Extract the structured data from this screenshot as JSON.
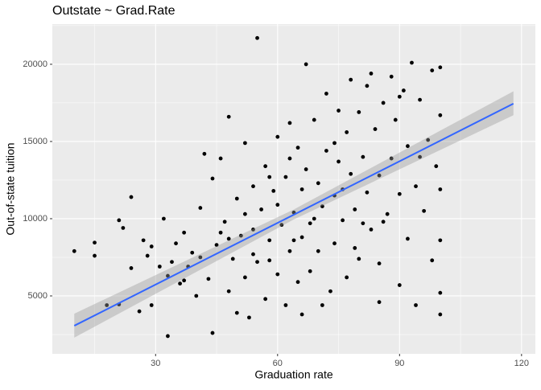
{
  "chart_data": {
    "type": "scatter",
    "title": "Outstate ~ Grad.Rate",
    "x_label": "Graduation rate",
    "y_label": "Out-of-state tuition",
    "x": [
      10,
      15,
      15,
      18,
      21,
      21,
      22,
      24,
      24,
      26,
      27,
      28,
      29,
      29,
      31,
      32,
      33,
      33,
      34,
      35,
      36,
      37,
      38,
      39,
      40,
      41,
      42,
      43,
      44,
      44,
      45,
      46,
      47,
      48,
      48,
      49,
      50,
      50,
      51,
      52,
      52,
      53,
      54,
      54,
      55,
      55,
      56,
      57,
      57,
      58,
      59,
      60,
      60,
      61,
      62,
      62,
      63,
      63,
      64,
      65,
      65,
      66,
      66,
      67,
      67,
      68,
      68,
      69,
      70,
      70,
      71,
      72,
      72,
      73,
      74,
      74,
      75,
      75,
      76,
      77,
      77,
      78,
      78,
      79,
      80,
      80,
      81,
      82,
      82,
      83,
      83,
      84,
      85,
      85,
      86,
      87,
      88,
      88,
      89,
      90,
      90,
      91,
      92,
      92,
      93,
      94,
      94,
      95,
      96,
      97,
      98,
      98,
      99,
      100,
      100,
      100,
      100,
      100,
      100,
      85,
      66,
      71,
      46,
      58,
      64,
      76,
      86,
      60,
      54,
      69,
      74,
      58,
      48,
      41,
      37,
      52,
      79,
      63,
      81,
      90,
      95
    ],
    "values": [
      7900,
      8450,
      7600,
      4400,
      9900,
      4450,
      9400,
      11400,
      6800,
      4000,
      8600,
      7600,
      8200,
      4400,
      6900,
      10000,
      2400,
      6300,
      7200,
      8400,
      5800,
      9100,
      6900,
      7800,
      5000,
      10700,
      14200,
      6100,
      2600,
      12600,
      8300,
      13900,
      9800,
      16600,
      5300,
      7400,
      11300,
      3900,
      8900,
      14900,
      6200,
      3600,
      12100,
      9300,
      21700,
      7200,
      10600,
      4800,
      13400,
      8600,
      11800,
      6400,
      15300,
      9600,
      12700,
      4400,
      16200,
      7900,
      10400,
      14600,
      5900,
      11900,
      8800,
      20000,
      13200,
      9700,
      6600,
      16400,
      12300,
      7900,
      10800,
      18100,
      14400,
      5300,
      11500,
      8400,
      17000,
      13700,
      9900,
      15600,
      6200,
      12900,
      19000,
      10600,
      16900,
      7400,
      14000,
      18600,
      11700,
      9300,
      19400,
      15800,
      12800,
      7100,
      17500,
      10300,
      19200,
      13900,
      16400,
      11600,
      5700,
      18300,
      14700,
      8700,
      20100,
      12100,
      4400,
      17700,
      10500,
      15100,
      19600,
      7300,
      13400,
      19800,
      16700,
      11900,
      3800,
      5200,
      8600,
      4600,
      3800,
      4400,
      9100,
      7300,
      8600,
      11900,
      9800,
      10900,
      7700,
      10000,
      14900,
      12700,
      8700,
      7500,
      6000,
      10300,
      8100,
      13900,
      9700,
      17900,
      14000
    ],
    "fit": {
      "x": [
        10,
        118
      ],
      "y": [
        3070,
        17450
      ]
    },
    "band": {
      "x": [
        10,
        64,
        118
      ],
      "lower": [
        2300,
        9950,
        16700
      ],
      "upper": [
        3850,
        10600,
        18250
      ]
    },
    "xlim": [
      4.6,
      123.4
    ],
    "ylim": [
      1250,
      22600
    ],
    "xticks": [
      30,
      60,
      90,
      120
    ],
    "yticks": [
      5000,
      10000,
      15000,
      20000
    ],
    "grid": true,
    "point_color": "#000000",
    "fit_color": "#3366ff",
    "band_color": "#999999",
    "panel_color": "#ebebeb"
  }
}
